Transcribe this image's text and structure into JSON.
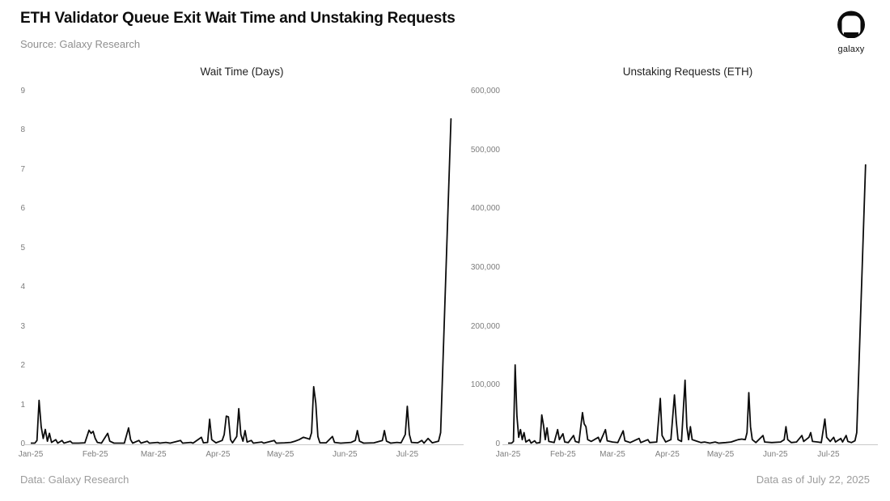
{
  "header": {
    "title": "ETH Validator Queue Exit Wait Time and Unstaking Requests",
    "subtitle": "Source: Galaxy Research",
    "logo_text": "galaxy"
  },
  "footer": {
    "left": "Data: Galaxy Research",
    "right": "Data as of July 22, 2025"
  },
  "chart_data": [
    {
      "type": "line",
      "title": "Wait Time (Days)",
      "xlabel": "",
      "ylabel": "",
      "x_unit": "day-of-year-2025 (Jan 1 = 1, data through Jul 22 = 203)",
      "x_domain": [
        1,
        204
      ],
      "ylim": [
        0,
        9
      ],
      "grid": false,
      "legend": false,
      "line_color": "#0b0b0b",
      "yticks": {
        "values": [
          0,
          1,
          2,
          3,
          4,
          5,
          6,
          7,
          8,
          9
        ],
        "labels": [
          "0",
          "1",
          "2",
          "3",
          "4",
          "5",
          "6",
          "7",
          "8",
          "9"
        ]
      },
      "xticks": {
        "days": [
          1,
          32,
          60,
          91,
          121,
          152,
          182
        ],
        "labels": [
          "Jan-25",
          "Feb-25",
          "Mar-25",
          "Apr-25",
          "May-25",
          "Jun-25",
          "Jul-25"
        ]
      },
      "series": [
        {
          "id": "wait-time",
          "name": "ETH validator exit queue wait time (days)",
          "points": [
            [
              1,
              0.03
            ],
            [
              3,
              0.03
            ],
            [
              4,
              0.1
            ],
            [
              5,
              1.12
            ],
            [
              6,
              0.45
            ],
            [
              7,
              0.15
            ],
            [
              8,
              0.38
            ],
            [
              9,
              0.08
            ],
            [
              10,
              0.28
            ],
            [
              11,
              0.05
            ],
            [
              13,
              0.12
            ],
            [
              14,
              0.03
            ],
            [
              16,
              0.1
            ],
            [
              17,
              0.03
            ],
            [
              20,
              0.08
            ],
            [
              21,
              0.03
            ],
            [
              24,
              0.03
            ],
            [
              27,
              0.04
            ],
            [
              29,
              0.36
            ],
            [
              30,
              0.28
            ],
            [
              31,
              0.33
            ],
            [
              32,
              0.15
            ],
            [
              33,
              0.05
            ],
            [
              35,
              0.03
            ],
            [
              38,
              0.28
            ],
            [
              39,
              0.08
            ],
            [
              41,
              0.03
            ],
            [
              46,
              0.03
            ],
            [
              48,
              0.42
            ],
            [
              49,
              0.12
            ],
            [
              50,
              0.03
            ],
            [
              53,
              0.1
            ],
            [
              54,
              0.03
            ],
            [
              57,
              0.08
            ],
            [
              58,
              0.03
            ],
            [
              62,
              0.05
            ],
            [
              63,
              0.03
            ],
            [
              66,
              0.05
            ],
            [
              68,
              0.03
            ],
            [
              73,
              0.1
            ],
            [
              74,
              0.03
            ],
            [
              78,
              0.05
            ],
            [
              79,
              0.03
            ],
            [
              83,
              0.18
            ],
            [
              84,
              0.04
            ],
            [
              86,
              0.05
            ],
            [
              87,
              0.64
            ],
            [
              88,
              0.12
            ],
            [
              90,
              0.04
            ],
            [
              93,
              0.1
            ],
            [
              94,
              0.25
            ],
            [
              95,
              0.72
            ],
            [
              96,
              0.7
            ],
            [
              97,
              0.12
            ],
            [
              98,
              0.04
            ],
            [
              100,
              0.2
            ],
            [
              101,
              0.91
            ],
            [
              102,
              0.25
            ],
            [
              103,
              0.08
            ],
            [
              104,
              0.35
            ],
            [
              105,
              0.06
            ],
            [
              107,
              0.1
            ],
            [
              108,
              0.03
            ],
            [
              112,
              0.06
            ],
            [
              113,
              0.03
            ],
            [
              118,
              0.1
            ],
            [
              119,
              0.03
            ],
            [
              123,
              0.04
            ],
            [
              126,
              0.05
            ],
            [
              128,
              0.08
            ],
            [
              130,
              0.12
            ],
            [
              132,
              0.18
            ],
            [
              134,
              0.15
            ],
            [
              135,
              0.13
            ],
            [
              136,
              0.3
            ],
            [
              137,
              1.47
            ],
            [
              138,
              1.05
            ],
            [
              139,
              0.2
            ],
            [
              140,
              0.04
            ],
            [
              143,
              0.04
            ],
            [
              146,
              0.2
            ],
            [
              147,
              0.05
            ],
            [
              150,
              0.03
            ],
            [
              155,
              0.05
            ],
            [
              157,
              0.1
            ],
            [
              158,
              0.35
            ],
            [
              159,
              0.08
            ],
            [
              161,
              0.03
            ],
            [
              166,
              0.04
            ],
            [
              170,
              0.1
            ],
            [
              171,
              0.35
            ],
            [
              172,
              0.08
            ],
            [
              174,
              0.03
            ],
            [
              177,
              0.05
            ],
            [
              179,
              0.04
            ],
            [
              181,
              0.25
            ],
            [
              182,
              0.97
            ],
            [
              183,
              0.25
            ],
            [
              184,
              0.05
            ],
            [
              187,
              0.04
            ],
            [
              189,
              0.1
            ],
            [
              190,
              0.03
            ],
            [
              192,
              0.15
            ],
            [
              194,
              0.04
            ],
            [
              197,
              0.08
            ],
            [
              198,
              0.3
            ],
            [
              203,
              8.3
            ]
          ]
        }
      ]
    },
    {
      "type": "line",
      "title": "Unstaking Requests (ETH)",
      "xlabel": "",
      "ylabel": "",
      "x_unit": "day-of-year-2025 (Jan 1 = 1, data through Jul 22 = 203)",
      "x_domain": [
        1,
        204
      ],
      "ylim": [
        0,
        600000
      ],
      "grid": false,
      "legend": false,
      "line_color": "#0b0b0b",
      "yticks": {
        "values": [
          0,
          100000,
          200000,
          300000,
          400000,
          500000,
          600000
        ],
        "labels": [
          "0",
          "100,000",
          "200,000",
          "300,000",
          "400,000",
          "500,000",
          "600,000"
        ]
      },
      "xticks": {
        "days": [
          1,
          32,
          60,
          91,
          121,
          152,
          182
        ],
        "labels": [
          "Jan-25",
          "Feb-25",
          "Mar-25",
          "Apr-25",
          "May-25",
          "Jun-25",
          "Jul-25"
        ]
      },
      "series": [
        {
          "id": "unstaking-requests",
          "name": "Unstaking requests (ETH)",
          "points": [
            [
              1,
              2000
            ],
            [
              3,
              2000
            ],
            [
              4,
              5000
            ],
            [
              5,
              135000
            ],
            [
              6,
              48000
            ],
            [
              7,
              12000
            ],
            [
              8,
              25000
            ],
            [
              9,
              8000
            ],
            [
              10,
              20000
            ],
            [
              11,
              4000
            ],
            [
              13,
              8000
            ],
            [
              14,
              2000
            ],
            [
              16,
              6000
            ],
            [
              17,
              2000
            ],
            [
              19,
              3000
            ],
            [
              20,
              50000
            ],
            [
              21,
              33000
            ],
            [
              22,
              8000
            ],
            [
              23,
              28000
            ],
            [
              24,
              5000
            ],
            [
              27,
              3000
            ],
            [
              29,
              25000
            ],
            [
              30,
              8000
            ],
            [
              32,
              18000
            ],
            [
              33,
              4000
            ],
            [
              35,
              3000
            ],
            [
              38,
              15000
            ],
            [
              39,
              5000
            ],
            [
              41,
              3000
            ],
            [
              43,
              54000
            ],
            [
              44,
              35000
            ],
            [
              45,
              30000
            ],
            [
              46,
              8000
            ],
            [
              48,
              5000
            ],
            [
              52,
              12000
            ],
            [
              53,
              4000
            ],
            [
              56,
              25000
            ],
            [
              57,
              6000
            ],
            [
              60,
              4000
            ],
            [
              63,
              3000
            ],
            [
              66,
              23000
            ],
            [
              67,
              6000
            ],
            [
              70,
              3000
            ],
            [
              75,
              10000
            ],
            [
              76,
              3000
            ],
            [
              80,
              8000
            ],
            [
              81,
              3000
            ],
            [
              85,
              4000
            ],
            [
              87,
              78000
            ],
            [
              88,
              15000
            ],
            [
              90,
              4000
            ],
            [
              93,
              8000
            ],
            [
              95,
              84000
            ],
            [
              96,
              40000
            ],
            [
              97,
              8000
            ],
            [
              99,
              5000
            ],
            [
              101,
              109000
            ],
            [
              102,
              30000
            ],
            [
              103,
              8000
            ],
            [
              104,
              30000
            ],
            [
              105,
              8000
            ],
            [
              107,
              6000
            ],
            [
              110,
              3000
            ],
            [
              112,
              4000
            ],
            [
              115,
              2000
            ],
            [
              118,
              4000
            ],
            [
              120,
              2000
            ],
            [
              124,
              3000
            ],
            [
              127,
              4000
            ],
            [
              129,
              6000
            ],
            [
              131,
              8000
            ],
            [
              133,
              9000
            ],
            [
              135,
              8000
            ],
            [
              136,
              20000
            ],
            [
              137,
              88000
            ],
            [
              138,
              30000
            ],
            [
              139,
              8000
            ],
            [
              141,
              3000
            ],
            [
              145,
              15000
            ],
            [
              146,
              4000
            ],
            [
              150,
              3000
            ],
            [
              155,
              4000
            ],
            [
              157,
              8000
            ],
            [
              158,
              30000
            ],
            [
              159,
              8000
            ],
            [
              161,
              3000
            ],
            [
              164,
              4000
            ],
            [
              167,
              15000
            ],
            [
              168,
              5000
            ],
            [
              171,
              12000
            ],
            [
              172,
              20000
            ],
            [
              173,
              5000
            ],
            [
              176,
              4000
            ],
            [
              178,
              3000
            ],
            [
              180,
              43000
            ],
            [
              181,
              12000
            ],
            [
              183,
              5000
            ],
            [
              185,
              12000
            ],
            [
              186,
              4000
            ],
            [
              189,
              10000
            ],
            [
              190,
              4000
            ],
            [
              192,
              15000
            ],
            [
              193,
              5000
            ],
            [
              195,
              3000
            ],
            [
              197,
              6000
            ],
            [
              198,
              20000
            ],
            [
              203,
              475000
            ]
          ]
        }
      ]
    }
  ]
}
